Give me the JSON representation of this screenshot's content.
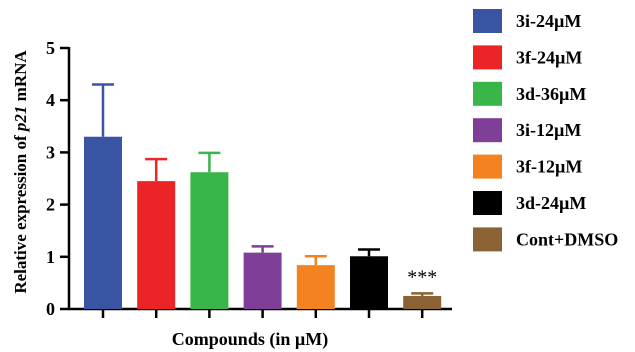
{
  "chart_data": {
    "type": "bar",
    "xlabel": "Compounds (in µM)",
    "ylabel_parts": [
      "Relative expression of ",
      "p21",
      " mRNA"
    ],
    "ylim": [
      0,
      5
    ],
    "yticks": [
      0,
      1,
      2,
      3,
      4,
      5
    ],
    "grid": false,
    "legend_position": "right",
    "series": [
      {
        "name": "3i-24µM",
        "value": 3.3,
        "error": 1.0,
        "color": "#3a54a4"
      },
      {
        "name": "3f-24µM",
        "value": 2.45,
        "error": 0.42,
        "color": "#ec2427"
      },
      {
        "name": "3d-36µM",
        "value": 2.62,
        "error": 0.37,
        "color": "#3ab54a"
      },
      {
        "name": "3i-12µM",
        "value": 1.08,
        "error": 0.12,
        "color": "#7f3f98"
      },
      {
        "name": "3f-12µM",
        "value": 0.84,
        "error": 0.17,
        "color": "#f58220"
      },
      {
        "name": "3d-24µM",
        "value": 1.01,
        "error": 0.13,
        "color": "#000000"
      },
      {
        "name": "Cont+DMSO",
        "value": 0.25,
        "error": 0.05,
        "color": "#8b6233"
      }
    ],
    "annotations": [
      {
        "text": "***",
        "series_index": 6
      }
    ]
  }
}
